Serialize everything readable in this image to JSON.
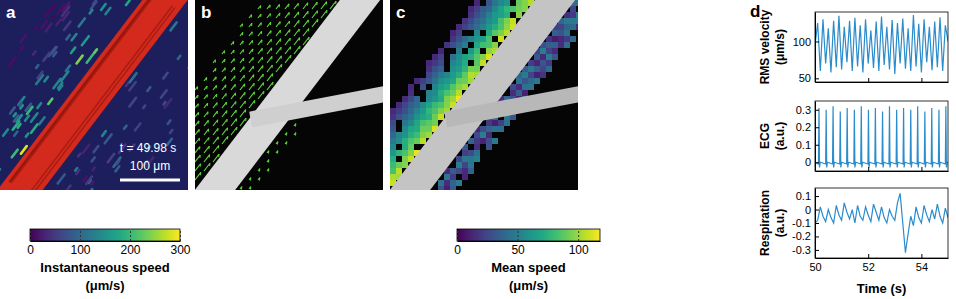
{
  "chart_data": [
    {
      "type": "image",
      "title": "a",
      "annotations": [
        "t = 49.98 s",
        "100 μm"
      ],
      "colorbar": {
        "label": [
          "Instantaneous speed",
          "(μm/s)"
        ],
        "range": [
          0,
          300
        ],
        "ticks": [
          0,
          100,
          200,
          300
        ]
      }
    },
    {
      "type": "image",
      "title": "b"
    },
    {
      "type": "image",
      "title": "c",
      "colorbar": {
        "label": [
          "Mean speed",
          "(μm/s)"
        ],
        "range": [
          0,
          118
        ],
        "ticks": [
          0,
          50,
          100
        ]
      }
    },
    {
      "type": "line",
      "title": "d",
      "ylabel": [
        "RMS velocity",
        "(μm/s)"
      ],
      "color": "#2a8ccc",
      "tick_labels": "y",
      "xlim": [
        50,
        55
      ],
      "xticks": [
        50,
        52,
        54
      ],
      "ylim": [
        45,
        140
      ],
      "yticks": [
        50,
        100
      ],
      "x": [
        50,
        50.1,
        50.2,
        50.3,
        50.4,
        50.5,
        50.6,
        50.7,
        50.8,
        50.9,
        51,
        51.1,
        51.2,
        51.3,
        51.4,
        51.5,
        51.6,
        51.7,
        51.8,
        51.9,
        52,
        52.1,
        52.2,
        52.3,
        52.4,
        52.5,
        52.6,
        52.7,
        52.8,
        52.9,
        53,
        53.1,
        53.2,
        53.3,
        53.4,
        53.5,
        53.6,
        53.7,
        53.8,
        53.9,
        54,
        54.1,
        54.2,
        54.3,
        54.4,
        54.5,
        54.6,
        54.7,
        54.8,
        54.9,
        55
      ],
      "values": [
        95,
        125,
        60,
        130,
        70,
        118,
        58,
        128,
        65,
        135,
        62,
        120,
        72,
        128,
        60,
        132,
        66,
        122,
        58,
        130,
        70,
        115,
        64,
        127,
        60,
        134,
        68,
        120,
        62,
        129,
        56,
        125,
        70,
        131,
        63,
        118,
        60,
        136,
        66,
        124,
        58,
        130,
        72,
        120,
        61,
        127,
        65,
        133,
        60,
        122,
        100
      ]
    },
    {
      "type": "line",
      "ylabel": [
        "ECG",
        "(a.u.)"
      ],
      "color": "#2a8ccc",
      "tick_labels": "y",
      "xlim": [
        50,
        55
      ],
      "xticks": [
        50,
        52,
        54
      ],
      "ylim": [
        -0.05,
        0.35
      ],
      "yticks": [
        0,
        0.1,
        0.2,
        0.3
      ],
      "x": [
        50,
        50.13,
        50.15,
        50.17,
        50.2,
        50.4,
        50.42,
        50.44,
        50.47,
        50.66,
        50.68,
        50.7,
        50.73,
        50.93,
        50.95,
        50.97,
        51,
        51.19,
        51.21,
        51.23,
        51.26,
        51.46,
        51.48,
        51.5,
        51.53,
        51.72,
        51.74,
        51.76,
        51.79,
        51.99,
        52.01,
        52.03,
        52.06,
        52.25,
        52.27,
        52.29,
        52.32,
        52.52,
        52.54,
        52.56,
        52.59,
        52.78,
        52.8,
        52.82,
        52.85,
        53.05,
        53.07,
        53.09,
        53.12,
        53.31,
        53.33,
        53.35,
        53.38,
        53.58,
        53.6,
        53.62,
        53.65,
        53.84,
        53.86,
        53.88,
        53.91,
        54.11,
        54.13,
        54.15,
        54.18,
        54.37,
        54.39,
        54.41,
        54.44,
        54.64,
        54.66,
        54.68,
        54.71,
        54.9,
        54.92,
        54.94,
        54.97,
        55
      ],
      "values": [
        0,
        -0.01,
        0.31,
        -0.03,
        0,
        -0.01,
        0.3,
        -0.03,
        0,
        -0.01,
        0.32,
        -0.03,
        0,
        -0.01,
        0.29,
        -0.03,
        0,
        -0.01,
        0.31,
        -0.03,
        0,
        -0.01,
        0.3,
        -0.03,
        0,
        -0.01,
        0.32,
        -0.03,
        0,
        -0.01,
        0.3,
        -0.03,
        0,
        -0.01,
        0.31,
        -0.03,
        0,
        -0.01,
        0.29,
        -0.03,
        0,
        -0.01,
        0.32,
        -0.03,
        0,
        -0.01,
        0.3,
        -0.03,
        0,
        -0.01,
        0.31,
        -0.03,
        0,
        -0.01,
        0.3,
        -0.03,
        0,
        -0.01,
        0.32,
        -0.03,
        0,
        -0.01,
        0.29,
        -0.03,
        0,
        -0.01,
        0.31,
        -0.03,
        0,
        -0.01,
        0.3,
        -0.03,
        0,
        -0.01,
        0.32,
        -0.03,
        0,
        0
      ]
    },
    {
      "type": "line",
      "ylabel": [
        "Respiration",
        "(a.u.)"
      ],
      "xlabel": "Time (s)",
      "color": "#2a8ccc",
      "xlim": [
        50,
        55
      ],
      "xticks": [
        50,
        52,
        54
      ],
      "ylim": [
        -0.36,
        0.16
      ],
      "yticks": [
        -0.3,
        -0.2,
        -0.1,
        0,
        0.1
      ],
      "x": [
        50,
        50.1,
        50.2,
        50.3,
        50.4,
        50.5,
        50.6,
        50.7,
        50.8,
        50.9,
        51,
        51.1,
        51.2,
        51.3,
        51.4,
        51.5,
        51.6,
        51.7,
        51.8,
        51.9,
        52,
        52.1,
        52.2,
        52.3,
        52.4,
        52.5,
        52.6,
        52.7,
        52.8,
        52.9,
        53,
        53.1,
        53.2,
        53.3,
        53.4,
        53.5,
        53.6,
        53.7,
        53.8,
        53.9,
        54,
        54.1,
        54.2,
        54.3,
        54.4,
        54.5,
        54.6,
        54.7,
        54.8,
        54.9,
        55
      ],
      "values": [
        -0.1,
        -0.08,
        0.02,
        -0.05,
        -0.09,
        0,
        -0.06,
        -0.1,
        0.03,
        -0.04,
        -0.08,
        0.05,
        -0.02,
        -0.07,
        0,
        -0.1,
        0.03,
        -0.05,
        -0.08,
        0.02,
        -0.04,
        -0.09,
        0.04,
        -0.02,
        -0.08,
        0.02,
        -0.06,
        -0.1,
        0,
        -0.05,
        -0.08,
        0.05,
        0.12,
        -0.1,
        -0.32,
        -0.18,
        -0.05,
        -0.12,
        0.02,
        -0.06,
        -0.1,
        0.03,
        -0.04,
        -0.09,
        0,
        -0.07,
        0.04,
        -0.05,
        -0.1,
        0.01,
        -0.06
      ]
    }
  ]
}
